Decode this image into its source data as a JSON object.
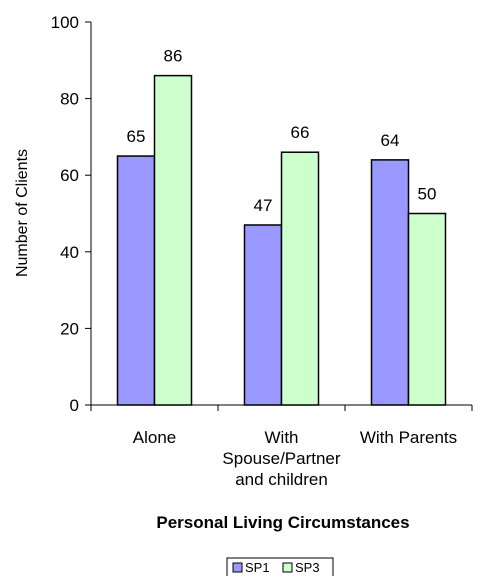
{
  "chart_data": {
    "type": "bar",
    "categories": [
      [
        "Alone"
      ],
      [
        "With",
        "Spouse/Partner",
        "and children"
      ],
      [
        "With Parents"
      ]
    ],
    "series": [
      {
        "name": "SP1",
        "values": [
          65,
          47,
          64
        ],
        "color": "#9999ff"
      },
      {
        "name": "SP3",
        "values": [
          86,
          66,
          50
        ],
        "color": "#ccffcc"
      }
    ],
    "ylim": [
      0,
      100
    ],
    "yticks": [
      0,
      20,
      40,
      60,
      80,
      100
    ],
    "xlabel": "Personal Living Circumstances",
    "ylabel": "Number of Clients",
    "grid": false,
    "legend_position": "bottom-center"
  }
}
